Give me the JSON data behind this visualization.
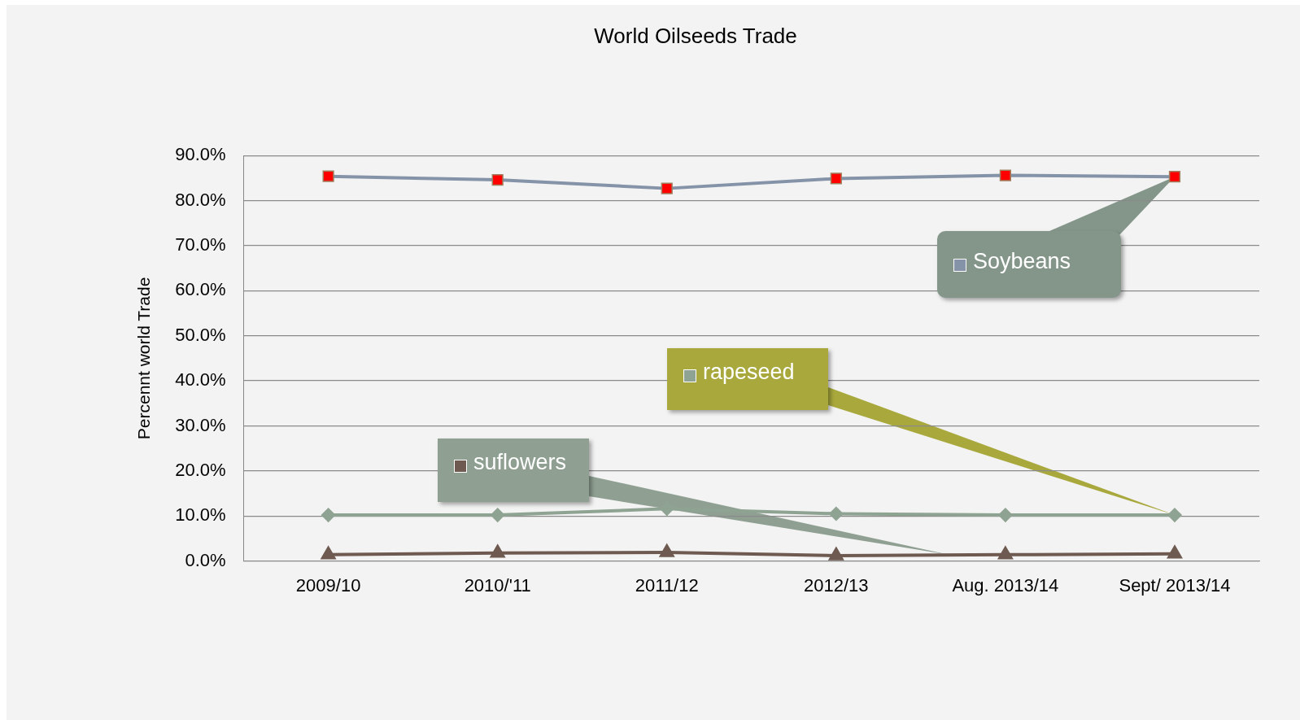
{
  "chart_data": {
    "type": "line",
    "title": "World Oilseeds Trade",
    "ylabel": "Percennt world Trade",
    "categories": [
      "2009/10",
      "2010/'11",
      "2011/12",
      "2012/13",
      "Aug. 2013/14",
      "Sept/ 2013/14"
    ],
    "series": [
      {
        "name": "Soybeans",
        "color": "#8593a8",
        "marker": "square",
        "values": [
          85.4,
          84.6,
          82.7,
          84.9,
          85.6,
          85.3
        ]
      },
      {
        "name": "rapeseed",
        "color": "#8fa393",
        "marker": "diamond",
        "values": [
          10.2,
          10.2,
          11.6,
          10.5,
          10.2,
          10.2
        ]
      },
      {
        "name": "suflowers",
        "color": "#6e5a50",
        "marker": "triangle",
        "values": [
          1.4,
          1.8,
          1.9,
          1.2,
          1.4,
          1.6
        ]
      }
    ],
    "ylim": [
      0,
      90
    ],
    "yticks": [
      {
        "value": 0,
        "label": "0.0%"
      },
      {
        "value": 10,
        "label": "10.0%"
      },
      {
        "value": 20,
        "label": "20.0%"
      },
      {
        "value": 30,
        "label": "30.0%"
      },
      {
        "value": 40,
        "label": "40.0%"
      },
      {
        "value": 50,
        "label": "50.0%"
      },
      {
        "value": 60,
        "label": "60.0%"
      },
      {
        "value": 70,
        "label": "70.0%"
      },
      {
        "value": 80,
        "label": "80.0%"
      },
      {
        "value": 90,
        "label": "90.0%"
      }
    ],
    "grid": "y",
    "legend": "center"
  }
}
